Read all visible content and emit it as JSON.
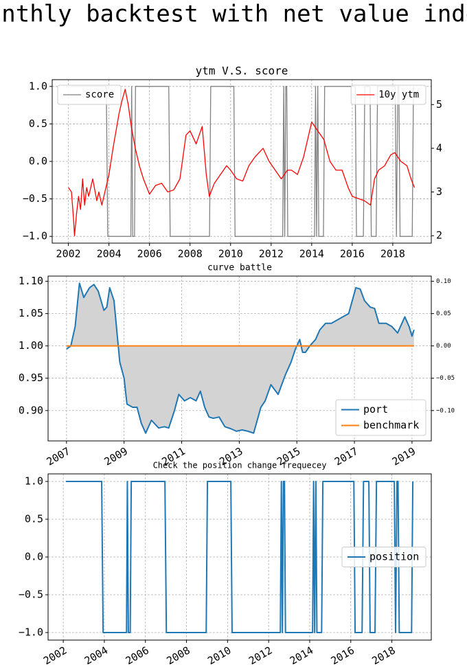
{
  "figure_title": "Monthly backtest with net value index",
  "chart_data": [
    {
      "type": "line",
      "title": "ytm V.S. score",
      "xlim": [
        2001.2,
        2019.9
      ],
      "xticks": [
        2002,
        2004,
        2006,
        2008,
        2010,
        2012,
        2014,
        2016,
        2018
      ],
      "ylim": [
        -1.09,
        1.09
      ],
      "yticks": [
        {
          "value": -1,
          "label": "−1.0"
        },
        {
          "value": -0.5,
          "label": "−0.5"
        },
        {
          "value": 0,
          "label": "0.0"
        },
        0.5,
        {
          "value": 1,
          "label": "1.0"
        }
      ],
      "y2lim": [
        1.83,
        5.57
      ],
      "y2ticks": [
        2,
        3,
        4,
        5
      ],
      "grid": true,
      "series": [
        {
          "name": "score",
          "color": "#808080",
          "legend_loc": "upper left",
          "x": [
            2002.13,
            2003.87,
            2003.94,
            2005.08,
            2005.12,
            2005.17,
            2005.26,
            2005.31,
            2006.95,
            2007.02,
            2008.96,
            2009.02,
            2010.16,
            2010.22,
            2012.57,
            2012.62,
            2012.67,
            2012.72,
            2012.77,
            2012.82,
            2014.14,
            2014.19,
            2014.24,
            2014.3,
            2014.35,
            2014.58,
            2014.64,
            2016.15,
            2016.21,
            2016.55,
            2016.62,
            2016.88,
            2016.94,
            2017.18,
            2017.25,
            2018.12,
            2018.18,
            2018.25,
            2018.3,
            2018.36,
            2018.96,
            2019.02
          ],
          "values": [
            1,
            1,
            -1,
            -1,
            1,
            -1,
            -1,
            1,
            1,
            -1,
            -1,
            1,
            1,
            -1,
            -1,
            1,
            -1,
            1,
            1,
            -1,
            -1,
            1,
            -1,
            1,
            -1,
            -1,
            1,
            1,
            -1,
            -1,
            1,
            1,
            -1,
            -1,
            1,
            1,
            -1,
            1,
            1,
            -1,
            -1,
            1
          ]
        },
        {
          "name": "10y ytm",
          "color": "#ff0000",
          "axis": "y2",
          "legend_loc": "upper right",
          "x": [
            2002.0,
            2002.15,
            2002.25,
            2002.3,
            2002.4,
            2002.5,
            2002.6,
            2002.7,
            2002.8,
            2002.9,
            2003.0,
            2003.2,
            2003.4,
            2003.5,
            2003.65,
            2003.8,
            2004.0,
            2004.2,
            2004.35,
            2004.5,
            2004.65,
            2004.8,
            2004.95,
            2005.1,
            2005.3,
            2005.5,
            2005.7,
            2006.0,
            2006.3,
            2006.6,
            2006.9,
            2007.2,
            2007.5,
            2007.8,
            2008.0,
            2008.3,
            2008.6,
            2008.8,
            2008.95,
            2009.2,
            2009.5,
            2009.8,
            2010.0,
            2010.3,
            2010.6,
            2010.9,
            2011.2,
            2011.6,
            2011.9,
            2012.2,
            2012.5,
            2012.8,
            2013.0,
            2013.3,
            2013.6,
            2013.9,
            2014.0,
            2014.3,
            2014.6,
            2014.9,
            2015.2,
            2015.5,
            2015.8,
            2016.0,
            2016.3,
            2016.6,
            2016.9,
            2017.1,
            2017.3,
            2017.6,
            2017.9,
            2018.1,
            2018.4,
            2018.7,
            2018.9,
            2019.07
          ],
          "values": [
            3.1,
            3.0,
            2.4,
            2.0,
            2.5,
            2.9,
            2.6,
            3.3,
            2.7,
            3.1,
            2.9,
            3.3,
            2.8,
            3.0,
            2.7,
            3.0,
            3.4,
            4.0,
            4.4,
            4.8,
            5.1,
            5.35,
            5.0,
            4.5,
            4.0,
            3.6,
            3.3,
            2.95,
            3.15,
            3.2,
            3.0,
            3.05,
            3.3,
            4.3,
            4.4,
            4.1,
            4.5,
            3.4,
            2.9,
            3.2,
            3.4,
            3.6,
            3.5,
            3.3,
            3.25,
            3.6,
            3.8,
            4.0,
            3.7,
            3.5,
            3.3,
            3.5,
            3.5,
            3.4,
            3.8,
            4.4,
            4.6,
            4.4,
            4.2,
            3.7,
            3.5,
            3.5,
            3.1,
            2.9,
            2.85,
            2.8,
            2.7,
            3.3,
            3.5,
            3.6,
            3.85,
            3.9,
            3.7,
            3.6,
            3.3,
            3.1
          ]
        }
      ]
    },
    {
      "type": "line",
      "title": "curve battle",
      "xlim": [
        2006.36,
        2019.67
      ],
      "xticks": [
        2007,
        2009,
        2011,
        2013,
        2015,
        2017,
        2019
      ],
      "rotate_xticks": true,
      "ylim": [
        0.853,
        1.108
      ],
      "yticks": [
        {
          "value": 0.9,
          "label": "0.90"
        },
        0.95,
        {
          "value": 1,
          "label": "1.00"
        },
        1.05,
        {
          "value": 1.1,
          "label": "1.10"
        }
      ],
      "y2lim": [
        -0.147,
        0.108
      ],
      "y2ticks": [
        {
          "value": -0.1,
          "label": "−0.10"
        },
        {
          "value": -0.05,
          "label": "−0.05"
        },
        {
          "value": 0,
          "label": "0.00"
        },
        0.05,
        {
          "value": 0.1,
          "label": "0.10"
        }
      ],
      "grid": true,
      "legend_loc": "lower right",
      "fill_between_color": "#d3d3d3",
      "series": [
        {
          "name": "port",
          "color": "#1f77b4",
          "x": [
            2007.0,
            2007.15,
            2007.3,
            2007.45,
            2007.6,
            2007.8,
            2007.95,
            2008.1,
            2008.3,
            2008.4,
            2008.5,
            2008.65,
            2008.85,
            2009.0,
            2009.1,
            2009.3,
            2009.45,
            2009.6,
            2009.75,
            2009.95,
            2010.2,
            2010.4,
            2010.55,
            2010.75,
            2010.9,
            2011.1,
            2011.3,
            2011.5,
            2011.65,
            2011.8,
            2011.95,
            2012.1,
            2012.3,
            2012.5,
            2012.7,
            2012.9,
            2013.1,
            2013.3,
            2013.5,
            2013.75,
            2013.9,
            2014.1,
            2014.35,
            2014.6,
            2014.8,
            2014.95,
            2015.1,
            2015.2,
            2015.3,
            2015.45,
            2015.65,
            2015.8,
            2016.0,
            2016.2,
            2016.4,
            2016.6,
            2016.8,
            2017.05,
            2017.2,
            2017.35,
            2017.55,
            2017.7,
            2017.85,
            2018.1,
            2018.3,
            2018.5,
            2018.75,
            2018.9,
            2019.0,
            2019.07
          ],
          "values": [
            0.995,
            1.0,
            1.03,
            1.097,
            1.075,
            1.09,
            1.095,
            1.085,
            1.055,
            1.06,
            1.09,
            1.07,
            0.975,
            0.95,
            0.91,
            0.905,
            0.905,
            0.88,
            0.865,
            0.885,
            0.873,
            0.875,
            0.873,
            0.9,
            0.925,
            0.915,
            0.92,
            0.915,
            0.93,
            0.905,
            0.89,
            0.888,
            0.89,
            0.875,
            0.872,
            0.868,
            0.87,
            0.868,
            0.865,
            0.905,
            0.915,
            0.94,
            0.925,
            0.955,
            0.975,
            0.995,
            1.01,
            0.99,
            0.99,
            1.0,
            1.01,
            1.025,
            1.035,
            1.035,
            1.04,
            1.045,
            1.05,
            1.09,
            1.088,
            1.07,
            1.06,
            1.058,
            1.035,
            1.035,
            1.03,
            1.02,
            1.045,
            1.03,
            1.015,
            1.025
          ]
        },
        {
          "name": "benchmark",
          "color": "#ff7f0e",
          "x": [
            2007.0,
            2019.07
          ],
          "values": [
            1,
            1
          ]
        }
      ]
    },
    {
      "type": "line",
      "title": "Check the position change frequecey",
      "xlim": [
        2001.26,
        2019.92
      ],
      "xticks": [
        2002,
        2004,
        2006,
        2008,
        2010,
        2012,
        2014,
        2016,
        2018
      ],
      "rotate_xticks": true,
      "ylim": [
        -1.1,
        1.1
      ],
      "yticks": [
        {
          "value": -1,
          "label": "−1.0"
        },
        {
          "value": -0.5,
          "label": "−0.5"
        },
        {
          "value": 0,
          "label": "0.0"
        },
        0.5,
        {
          "value": 1,
          "label": "1.0"
        }
      ],
      "grid": true,
      "legend_loc": "center right",
      "series": [
        {
          "name": "position",
          "color": "#1f77b4",
          "x": [
            2002.13,
            2003.87,
            2003.94,
            2005.08,
            2005.12,
            2005.17,
            2005.26,
            2005.31,
            2006.95,
            2007.02,
            2008.96,
            2009.02,
            2010.16,
            2010.22,
            2012.57,
            2012.62,
            2012.67,
            2012.72,
            2012.77,
            2012.82,
            2014.14,
            2014.19,
            2014.24,
            2014.3,
            2014.35,
            2014.58,
            2014.64,
            2016.15,
            2016.21,
            2016.55,
            2016.62,
            2016.88,
            2016.94,
            2017.18,
            2017.25,
            2018.12,
            2018.18,
            2018.25,
            2018.3,
            2018.36,
            2018.96,
            2019.02
          ],
          "values": [
            1,
            1,
            -1,
            -1,
            1,
            -1,
            -1,
            1,
            1,
            -1,
            -1,
            1,
            1,
            -1,
            -1,
            1,
            -1,
            1,
            1,
            -1,
            -1,
            1,
            -1,
            1,
            -1,
            -1,
            1,
            1,
            -1,
            -1,
            1,
            1,
            -1,
            -1,
            1,
            1,
            -1,
            1,
            1,
            -1,
            -1,
            1
          ]
        }
      ]
    }
  ]
}
